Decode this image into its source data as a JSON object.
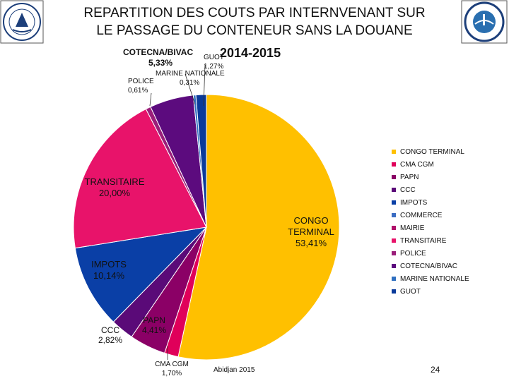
{
  "title_line1": "REPARTITION DES COUTS PAR INTERNVENANT SUR",
  "title_line2": "LE PASSAGE DU CONTENEUR SANS LA DOUANE",
  "year": "2014-2015",
  "footer_left": "Abidjan 2015",
  "page_number": "24",
  "chart_data": {
    "type": "pie",
    "title": "2014-2015",
    "categories": [
      "CONGO TERMINAL",
      "CMA CGM",
      "PAPN",
      "CCC",
      "IMPOTS",
      "COMMERCE",
      "MAIRIE",
      "TRANSITAIRE",
      "POLICE",
      "COTECNA/BIVAC",
      "MARINE NATIONALE",
      "GUOT"
    ],
    "values": [
      53.41,
      1.7,
      4.41,
      2.82,
      10.14,
      0.0,
      0.0,
      20.0,
      0.61,
      5.33,
      0.31,
      1.27
    ],
    "data_labels": {
      "CONGO TERMINAL": {
        "name_lines": [
          "CONGO",
          "TERMINAL"
        ],
        "value": "53,41%"
      },
      "CMA CGM": {
        "name": "CMA CGM",
        "value": "1,70%"
      },
      "PAPN": {
        "name": "PAPN",
        "value": "4,41%"
      },
      "CCC": {
        "name": "CCC",
        "value": "2,82%"
      },
      "IMPOTS": {
        "name": "IMPOTS",
        "value": "10,14%"
      },
      "TRANSITAIRE": {
        "name": "TRANSITAIRE",
        "value": "20,00%"
      },
      "POLICE": {
        "name": "POLICE",
        "value": "0,61%"
      },
      "COTECNA/BIVAC": {
        "name": "COTECNA/BIVAC",
        "value": "5,33%"
      },
      "MARINE NATIONALE": {
        "name": "MARINE NATIONALE",
        "value": "0,31%"
      },
      "GUOT": {
        "name": "GUOT",
        "value": "1,27%"
      }
    },
    "colors": [
      "#FFC000",
      "#E0005A",
      "#8B0066",
      "#5A0A78",
      "#0A3FA6",
      "#3A6CC2",
      "#B0106A",
      "#E8136A",
      "#9A1E7A",
      "#5C0B7E",
      "#2F6FC0",
      "#0A3A9A"
    ],
    "legend_position": "right"
  }
}
